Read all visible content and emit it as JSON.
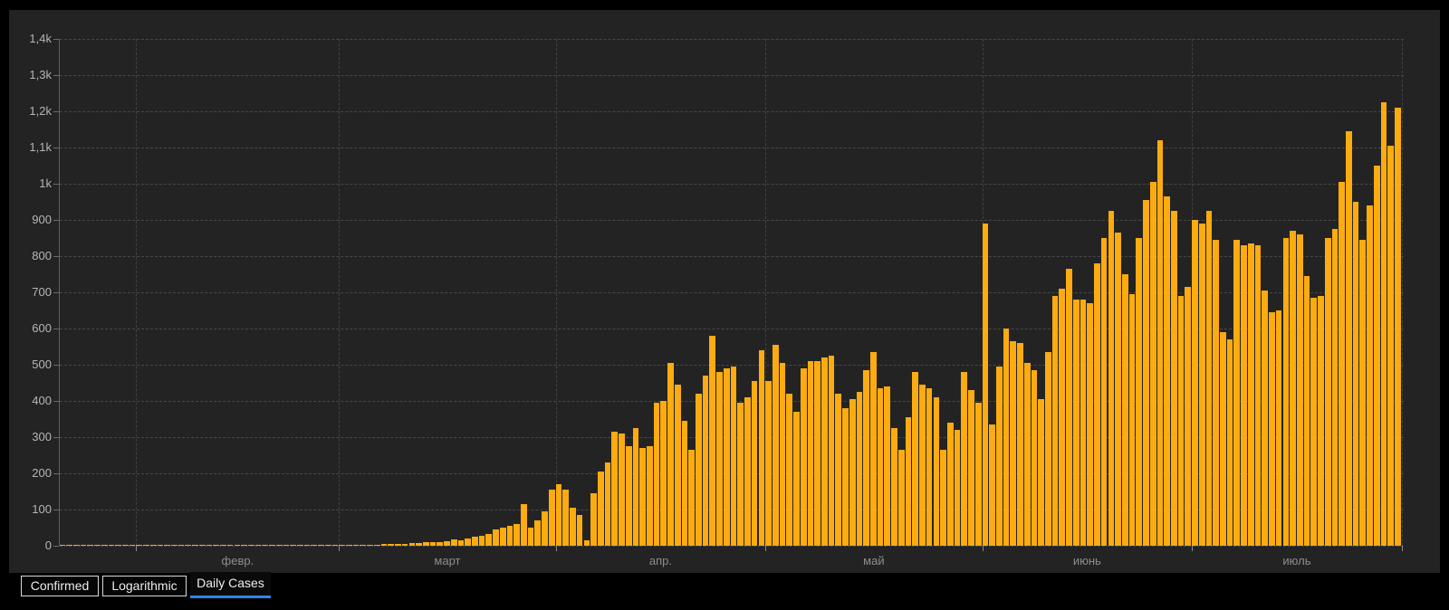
{
  "chart_data": {
    "type": "bar",
    "title": "",
    "series_name": "Daily Cases",
    "bar_color": "#fcab10",
    "background_color": "#232323",
    "grid": "dashed",
    "legend": "none",
    "y_axis": {
      "min": 0,
      "max": 1400,
      "tick_step": 100,
      "tick_labels_bottom_to_top": [
        "0",
        "100",
        "200",
        "300",
        "400",
        "500",
        "600",
        "700",
        "800",
        "900",
        "1k",
        "1,1k",
        "1,2k",
        "1,3k",
        "1,4k"
      ]
    },
    "x_axis": {
      "month_labels": [
        "февр.",
        "март",
        "апр.",
        "май",
        "июнь",
        "июль"
      ],
      "note": "daily bars from late January to end of July, vertical gridline at each month start"
    },
    "months": [
      {
        "label": "",
        "values": [
          1,
          1,
          1,
          1,
          2,
          1,
          1,
          2,
          1,
          2,
          1
        ]
      },
      {
        "label": "февр.",
        "values": [
          1,
          1,
          2,
          1,
          2,
          2,
          1,
          2,
          1,
          2,
          2,
          1,
          2,
          2,
          3,
          2,
          2,
          3,
          2,
          2,
          3,
          3,
          2,
          3,
          2,
          3,
          3,
          3,
          2
        ]
      },
      {
        "label": "март",
        "values": [
          1,
          1,
          2,
          2,
          3,
          3,
          4,
          4,
          5,
          6,
          7,
          8,
          9,
          10,
          11,
          12,
          18,
          14,
          20,
          26,
          28,
          32,
          45,
          50,
          55,
          60,
          115,
          50,
          70,
          95,
          155
        ]
      },
      {
        "label": "апр.",
        "values": [
          170,
          155,
          105,
          85,
          15,
          145,
          205,
          230,
          315,
          310,
          275,
          325,
          270,
          275,
          395,
          400,
          505,
          445,
          345,
          265,
          420,
          470,
          580,
          480,
          490,
          495,
          395,
          410,
          455,
          540
        ]
      },
      {
        "label": "май",
        "values": [
          455,
          555,
          505,
          420,
          370,
          490,
          510,
          510,
          520,
          525,
          420,
          380,
          405,
          425,
          485,
          535,
          435,
          440,
          325,
          265,
          355,
          480,
          445,
          435,
          410,
          265,
          340,
          320,
          480,
          430,
          395
        ]
      },
      {
        "label": "июнь",
        "values": [
          890,
          335,
          495,
          600,
          565,
          560,
          505,
          485,
          405,
          535,
          690,
          710,
          765,
          680,
          680,
          670,
          780,
          850,
          925,
          865,
          750,
          695,
          850,
          955,
          1005,
          1120,
          965,
          925,
          690,
          715
        ]
      },
      {
        "label": "июль",
        "values": [
          900,
          890,
          925,
          845,
          590,
          570,
          845,
          830,
          835,
          830,
          705,
          645,
          650,
          850,
          870,
          860,
          745,
          685,
          690,
          850,
          875,
          1005,
          1145,
          950,
          845,
          940,
          1050,
          1225,
          1105,
          1210
        ]
      }
    ]
  },
  "tabs": [
    {
      "label": "Confirmed",
      "active": false
    },
    {
      "label": "Logarithmic",
      "active": false
    },
    {
      "label": "Daily Cases",
      "active": true
    }
  ],
  "colors": {
    "accent_blue": "#2e86e8",
    "bar_orange": "#fcab10",
    "panel_bg": "#232323",
    "page_bg": "#000000",
    "axis_label": "#b5b5b5",
    "month_label": "#8d8d8d"
  }
}
